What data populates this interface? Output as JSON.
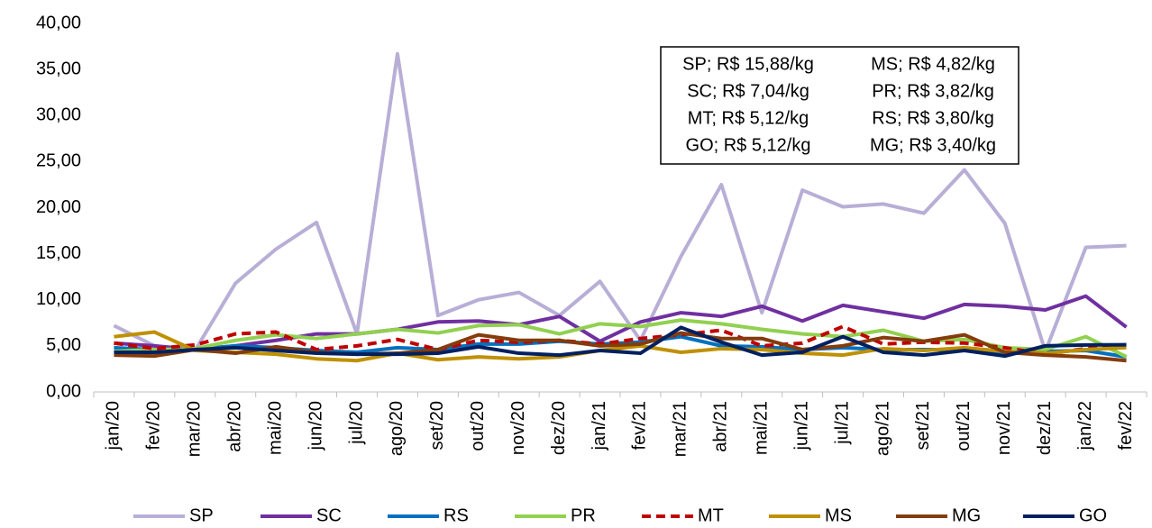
{
  "chart_data": {
    "type": "line",
    "categories": [
      "jan/20",
      "fev/20",
      "mar/20",
      "abr/20",
      "mai/20",
      "jun/20",
      "jul/20",
      "ago/20",
      "set/20",
      "out/20",
      "nov/20",
      "dez/20",
      "jan/21",
      "fev/21",
      "mar/21",
      "abr/21",
      "mai/21",
      "jun/21",
      "jul/21",
      "ago/21",
      "set/21",
      "out/21",
      "nov/21",
      "dez/21",
      "jan/22",
      "fev/22"
    ],
    "series": [
      {
        "name": "SP",
        "color": "#b8aed6",
        "dash": false,
        "values": [
          7.2,
          5.0,
          4.5,
          11.8,
          15.5,
          18.4,
          6.3,
          36.7,
          8.3,
          10.0,
          10.8,
          8.3,
          12.0,
          5.6,
          14.7,
          22.5,
          8.6,
          21.9,
          20.1,
          20.4,
          19.4,
          24.1,
          18.3,
          4.4,
          15.7,
          15.88
        ]
      },
      {
        "name": "SC",
        "color": "#7030a0",
        "dash": false,
        "values": [
          5.3,
          5.0,
          4.6,
          5.0,
          5.6,
          6.3,
          6.3,
          6.8,
          7.6,
          7.7,
          7.3,
          8.2,
          5.5,
          7.6,
          8.6,
          8.2,
          9.3,
          7.7,
          9.4,
          8.7,
          8.0,
          9.5,
          9.3,
          8.9,
          10.4,
          7.04
        ]
      },
      {
        "name": "RS",
        "color": "#0070c0",
        "dash": false,
        "values": [
          4.8,
          4.6,
          4.6,
          5.0,
          4.8,
          4.5,
          4.3,
          4.8,
          4.6,
          5.2,
          5.2,
          5.5,
          5.2,
          5.4,
          6.0,
          5.0,
          4.9,
          4.6,
          4.8,
          4.6,
          4.6,
          4.6,
          4.3,
          4.4,
          4.5,
          3.8
        ]
      },
      {
        "name": "PR",
        "color": "#92d050",
        "dash": false,
        "values": [
          4.4,
          4.6,
          4.7,
          5.6,
          6.2,
          5.8,
          6.3,
          6.8,
          6.4,
          7.2,
          7.3,
          6.3,
          7.4,
          7.1,
          7.8,
          7.4,
          6.8,
          6.3,
          6.0,
          6.7,
          5.5,
          5.7,
          4.8,
          4.6,
          6.0,
          3.82
        ]
      },
      {
        "name": "MT",
        "color": "#c00000",
        "dash": true,
        "values": [
          5.3,
          4.7,
          5.1,
          6.3,
          6.5,
          4.6,
          5.0,
          5.7,
          4.6,
          5.6,
          5.4,
          5.6,
          5.2,
          5.8,
          6.2,
          6.7,
          5.0,
          5.3,
          7.1,
          5.2,
          5.4,
          5.3,
          4.8,
          4.1,
          4.7,
          5.12
        ]
      },
      {
        "name": "MS",
        "color": "#bf9000",
        "dash": false,
        "values": [
          6.0,
          6.5,
          4.5,
          4.3,
          4.1,
          3.6,
          3.4,
          4.2,
          3.5,
          3.8,
          3.6,
          3.8,
          4.5,
          5.0,
          4.3,
          4.7,
          4.6,
          4.2,
          4.0,
          4.7,
          4.5,
          4.8,
          4.4,
          4.2,
          4.6,
          4.82
        ]
      },
      {
        "name": "MG",
        "color": "#843c0c",
        "dash": false,
        "values": [
          4.0,
          3.9,
          4.6,
          4.2,
          4.9,
          4.3,
          4.1,
          4.2,
          4.6,
          6.2,
          5.6,
          5.6,
          5.0,
          5.2,
          6.4,
          5.8,
          5.8,
          4.6,
          5.0,
          5.9,
          5.5,
          6.2,
          4.3,
          4.0,
          3.8,
          3.4
        ]
      },
      {
        "name": "GO",
        "color": "#002060",
        "dash": false,
        "values": [
          4.3,
          4.3,
          4.6,
          4.8,
          4.5,
          4.2,
          4.1,
          4.1,
          4.2,
          4.9,
          4.2,
          4.0,
          4.5,
          4.2,
          7.0,
          5.4,
          4.0,
          4.3,
          6.0,
          4.3,
          4.0,
          4.5,
          3.9,
          5.0,
          5.1,
          5.12
        ]
      }
    ],
    "ylim": [
      0,
      40
    ],
    "yticks": [
      {
        "value": 0,
        "label": "0,00"
      },
      {
        "value": 5,
        "label": "5,00"
      },
      {
        "value": 10,
        "label": "10,00"
      },
      {
        "value": 15,
        "label": "15,00"
      },
      {
        "value": 20,
        "label": "20,00"
      },
      {
        "value": 25,
        "label": "25,00"
      },
      {
        "value": 30,
        "label": "30,00"
      },
      {
        "value": 35,
        "label": "35,00"
      },
      {
        "value": 40,
        "label": "40,00"
      }
    ],
    "annotations": [
      "SP; R$ 15,88/kg",
      "MS; R$ 4,82/kg",
      "SC; R$ 7,04/kg",
      "PR; R$ 3,82/kg",
      "MT; R$ 5,12/kg",
      "RS; R$ 3,80/kg",
      "GO; R$ 5,12/kg",
      "MG; R$ 3,40/kg"
    ],
    "grid": false
  }
}
